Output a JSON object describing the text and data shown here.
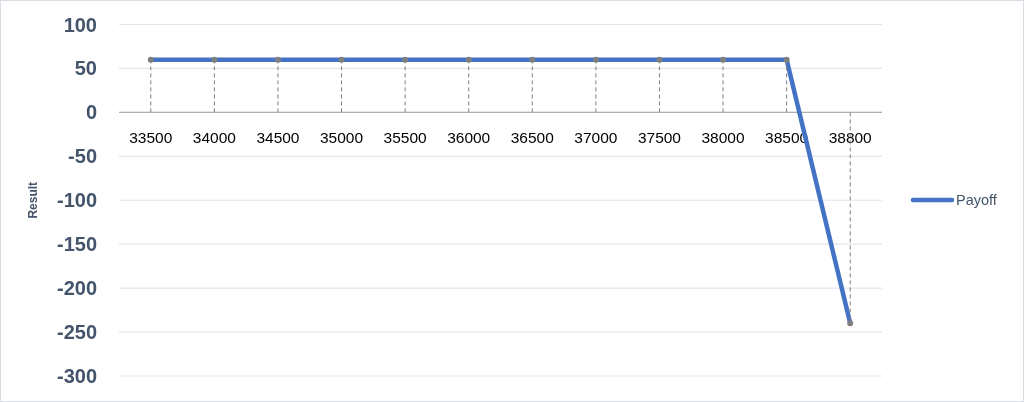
{
  "chart_data": {
    "type": "line",
    "ylabel": "Result",
    "categories": [
      "33500",
      "34000",
      "34500",
      "35000",
      "35500",
      "36000",
      "36500",
      "37000",
      "37500",
      "38000",
      "38500",
      "38800"
    ],
    "series": [
      {
        "name": "Payoff",
        "color": "#4472c4",
        "values": [
          60,
          60,
          60,
          60,
          60,
          60,
          60,
          60,
          60,
          60,
          60,
          -240
        ]
      },
      {
        "type": "lollipop",
        "color": "#7f7f7f",
        "line_style": "dashed",
        "marker": "circle",
        "values": [
          60,
          60,
          60,
          60,
          60,
          60,
          60,
          60,
          60,
          60,
          60,
          -240
        ]
      }
    ],
    "ylim": [
      -300,
      100
    ],
    "yticks": [
      -300,
      -250,
      -200,
      -150,
      -100,
      -50,
      0,
      50,
      100
    ],
    "grid": "y",
    "legend": "right"
  }
}
